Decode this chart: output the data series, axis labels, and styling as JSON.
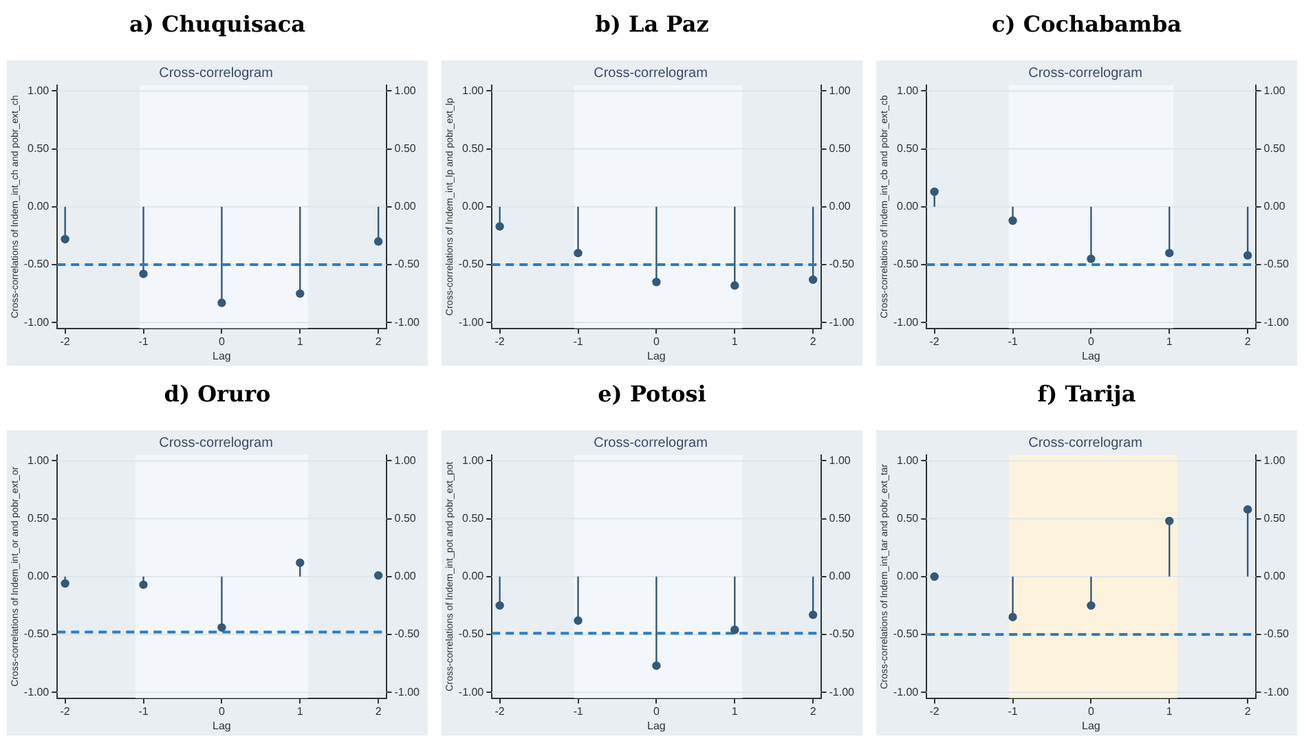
{
  "chart_data": [
    {
      "type": "lollipop",
      "title": "a) Chuquisaca",
      "subtitle": "Cross-correlogram",
      "xlabel": "Lag",
      "ylabel": "Cross-correlations of lndem_int_ch and pobr_ext_ch",
      "x": [
        -2,
        -1,
        0,
        1,
        2
      ],
      "values": [
        -0.28,
        -0.58,
        -0.83,
        -0.75,
        -0.3
      ],
      "color": "#34597a",
      "marker": "circle",
      "xlim": [
        -2.1,
        2.1
      ],
      "xticks": [
        -2,
        -1,
        0,
        1,
        2
      ],
      "ylim": [
        -1.05,
        1.05
      ],
      "yticks": [
        {
          "value": -1,
          "label": "-1.00"
        },
        {
          "value": -0.5,
          "label": "-0.50"
        },
        {
          "value": 0,
          "label": "0.00"
        },
        {
          "value": 0.5,
          "label": "0.50"
        },
        {
          "value": 1,
          "label": "1.00"
        }
      ],
      "y2lim": [
        -1.05,
        1.05
      ],
      "y2ticks": [
        {
          "value": -1,
          "label": "-1.00"
        },
        {
          "value": -0.5,
          "label": "-0.50"
        },
        {
          "value": 0,
          "label": "0.00"
        },
        {
          "value": 0.5,
          "label": "0.50"
        },
        {
          "value": 1,
          "label": "1.00"
        }
      ],
      "grid": "y",
      "ref_lines": [
        {
          "axis": "y",
          "value": -0.5,
          "color": "#2a7dc6",
          "line_style": "dashed"
        }
      ],
      "bands": [
        {
          "axis": "x",
          "from": -1.05,
          "to": 1.1,
          "color": "#f3f7fb"
        }
      ]
    },
    {
      "type": "lollipop",
      "title": "b) La Paz",
      "subtitle": "Cross-correlogram",
      "xlabel": "Lag",
      "ylabel": "Cross-correlations of lndem_int_lp and pobr_ext_lp",
      "x": [
        -2,
        -1,
        0,
        1,
        2
      ],
      "values": [
        -0.17,
        -0.4,
        -0.65,
        -0.68,
        -0.63
      ],
      "color": "#34597a",
      "marker": "circle",
      "xlim": [
        -2.1,
        2.1
      ],
      "xticks": [
        -2,
        -1,
        0,
        1,
        2
      ],
      "ylim": [
        -1.05,
        1.05
      ],
      "yticks": [
        {
          "value": -1,
          "label": "-1.00"
        },
        {
          "value": -0.5,
          "label": "-0.50"
        },
        {
          "value": 0,
          "label": "0.00"
        },
        {
          "value": 0.5,
          "label": "0.50"
        },
        {
          "value": 1,
          "label": "1.00"
        }
      ],
      "y2lim": [
        -1.05,
        1.05
      ],
      "y2ticks": [
        {
          "value": -1,
          "label": "-1.00"
        },
        {
          "value": -0.5,
          "label": "-0.50"
        },
        {
          "value": 0,
          "label": "0.00"
        },
        {
          "value": 0.5,
          "label": "0.50"
        },
        {
          "value": 1,
          "label": "1.00"
        }
      ],
      "grid": "y",
      "ref_lines": [
        {
          "axis": "y",
          "value": -0.5,
          "color": "#2a7dc6",
          "line_style": "dashed"
        }
      ],
      "bands": [
        {
          "axis": "x",
          "from": -1.05,
          "to": 1.1,
          "color": "#f3f7fb"
        }
      ]
    },
    {
      "type": "lollipop",
      "title": "c) Cochabamba",
      "subtitle": "Cross-correlogram",
      "xlabel": "Lag",
      "ylabel": "Cross-correlations of lndem_int_cb and pobr_ext_cb",
      "x": [
        -2,
        -1,
        0,
        1,
        2
      ],
      "values": [
        0.13,
        -0.12,
        -0.45,
        -0.4,
        -0.42
      ],
      "color": "#34597a",
      "marker": "circle",
      "xlim": [
        -2.1,
        2.1
      ],
      "xticks": [
        -2,
        -1,
        0,
        1,
        2
      ],
      "ylim": [
        -1.05,
        1.05
      ],
      "yticks": [
        {
          "value": -1,
          "label": "-1.00"
        },
        {
          "value": -0.5,
          "label": "-0.50"
        },
        {
          "value": 0,
          "label": "0.00"
        },
        {
          "value": 0.5,
          "label": "0.50"
        },
        {
          "value": 1,
          "label": "1.00"
        }
      ],
      "y2lim": [
        -1.05,
        1.05
      ],
      "y2ticks": [
        {
          "value": -1,
          "label": "-1.00"
        },
        {
          "value": -0.5,
          "label": "-0.50"
        },
        {
          "value": 0,
          "label": "0.00"
        },
        {
          "value": 0.5,
          "label": "0.50"
        },
        {
          "value": 1,
          "label": "1.00"
        }
      ],
      "grid": "y",
      "ref_lines": [
        {
          "axis": "y",
          "value": -0.5,
          "color": "#2a7dc6",
          "line_style": "dashed"
        }
      ],
      "bands": [
        {
          "axis": "x",
          "from": -1.05,
          "to": 1.05,
          "color": "#f3f7fb"
        }
      ]
    },
    {
      "type": "lollipop",
      "title": "d) Oruro",
      "subtitle": "Cross-correlogram",
      "xlabel": "Lag",
      "ylabel": "Cross-correlations of lndem_int_or and pobr_ext_or",
      "x": [
        -2,
        -1,
        0,
        1,
        2
      ],
      "values": [
        -0.06,
        -0.07,
        -0.44,
        0.12,
        0.01
      ],
      "color": "#34597a",
      "marker": "circle",
      "xlim": [
        -2.1,
        2.1
      ],
      "xticks": [
        -2,
        -1,
        0,
        1,
        2
      ],
      "ylim": [
        -1.05,
        1.05
      ],
      "yticks": [
        {
          "value": -1,
          "label": "-1.00"
        },
        {
          "value": -0.5,
          "label": "-0.50"
        },
        {
          "value": 0,
          "label": "0.00"
        },
        {
          "value": 0.5,
          "label": "0.50"
        },
        {
          "value": 1,
          "label": "1.00"
        }
      ],
      "y2lim": [
        -1.05,
        1.05
      ],
      "y2ticks": [
        {
          "value": -1,
          "label": "-1.00"
        },
        {
          "value": -0.5,
          "label": "-0.50"
        },
        {
          "value": 0,
          "label": "0.00"
        },
        {
          "value": 0.5,
          "label": "0.50"
        },
        {
          "value": 1,
          "label": "1.00"
        }
      ],
      "grid": "y",
      "ref_lines": [
        {
          "axis": "y",
          "value": -0.48,
          "color": "#2a7dc6",
          "line_style": "dashed"
        }
      ],
      "bands": [
        {
          "axis": "x",
          "from": -1.1,
          "to": 1.1,
          "color": "#f3f7fb"
        }
      ]
    },
    {
      "type": "lollipop",
      "title": "e) Potosi",
      "subtitle": "Cross-correlogram",
      "xlabel": "Lag",
      "ylabel": "Cross-correlations of lndem_int_pot and pobr_ext_pot",
      "x": [
        -2,
        -1,
        0,
        1,
        2
      ],
      "values": [
        -0.25,
        -0.38,
        -0.77,
        -0.46,
        -0.33
      ],
      "color": "#34597a",
      "marker": "circle",
      "xlim": [
        -2.1,
        2.1
      ],
      "xticks": [
        -2,
        -1,
        0,
        1,
        2
      ],
      "ylim": [
        -1.05,
        1.05
      ],
      "yticks": [
        {
          "value": -1,
          "label": "-1.00"
        },
        {
          "value": -0.5,
          "label": "-0.50"
        },
        {
          "value": 0,
          "label": "0.00"
        },
        {
          "value": 0.5,
          "label": "0.50"
        },
        {
          "value": 1,
          "label": "1.00"
        }
      ],
      "y2lim": [
        -1.05,
        1.05
      ],
      "y2ticks": [
        {
          "value": -1,
          "label": "-1.00"
        },
        {
          "value": -0.5,
          "label": "-0.50"
        },
        {
          "value": 0,
          "label": "0.00"
        },
        {
          "value": 0.5,
          "label": "0.50"
        },
        {
          "value": 1,
          "label": "1.00"
        }
      ],
      "grid": "y",
      "ref_lines": [
        {
          "axis": "y",
          "value": -0.49,
          "color": "#2a7dc6",
          "line_style": "dashed"
        }
      ],
      "bands": [
        {
          "axis": "x",
          "from": -1.05,
          "to": 1.1,
          "color": "#f3f7fb"
        }
      ]
    },
    {
      "type": "lollipop",
      "title": "f) Tarija",
      "subtitle": "Cross-correlogram",
      "xlabel": "Lag",
      "ylabel": "Cross-correlations of lndem_int_tar and pobr_ext_tar",
      "x": [
        -2,
        -1,
        0,
        1,
        2
      ],
      "values": [
        0.0,
        -0.35,
        -0.25,
        0.48,
        0.58
      ],
      "color": "#34597a",
      "marker": "circle",
      "xlim": [
        -2.1,
        2.1
      ],
      "xticks": [
        -2,
        -1,
        0,
        1,
        2
      ],
      "ylim": [
        -1.05,
        1.05
      ],
      "yticks": [
        {
          "value": -1,
          "label": "-1.00"
        },
        {
          "value": -0.5,
          "label": "-0.50"
        },
        {
          "value": 0,
          "label": "0.00"
        },
        {
          "value": 0.5,
          "label": "0.50"
        },
        {
          "value": 1,
          "label": "1.00"
        }
      ],
      "y2lim": [
        -1.05,
        1.05
      ],
      "y2ticks": [
        {
          "value": -1,
          "label": "-1.00"
        },
        {
          "value": -0.5,
          "label": "-0.50"
        },
        {
          "value": 0,
          "label": "0.00"
        },
        {
          "value": 0.5,
          "label": "0.50"
        },
        {
          "value": 1,
          "label": "1.00"
        }
      ],
      "grid": "y",
      "ref_lines": [
        {
          "axis": "y",
          "value": -0.5,
          "color": "#2a7dc6",
          "line_style": "dashed"
        }
      ],
      "bands": [
        {
          "axis": "x",
          "from": -1.05,
          "to": 1.1,
          "color": "#fdf3dc"
        }
      ]
    }
  ]
}
